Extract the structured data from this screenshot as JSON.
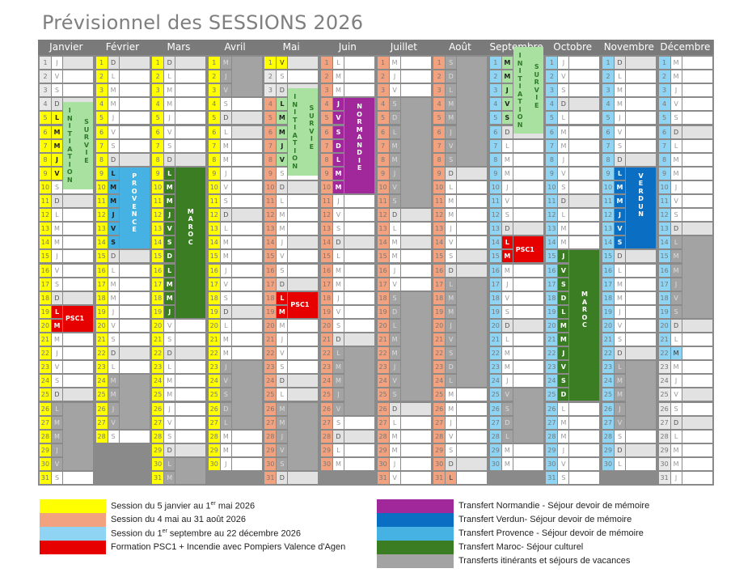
{
  "title": "Prévisionnel des SESSIONS 2026",
  "weekday_letters": [
    "L",
    "M",
    "M",
    "J",
    "V",
    "S",
    "D"
  ],
  "months": [
    {
      "name": "Janvier",
      "days": 31,
      "first_weekday": 3
    },
    {
      "name": "Février",
      "days": 28,
      "first_weekday": 6
    },
    {
      "name": "Mars",
      "days": 31,
      "first_weekday": 6
    },
    {
      "name": "Avril",
      "days": 30,
      "first_weekday": 2
    },
    {
      "name": "Mai",
      "days": 31,
      "first_weekday": 4
    },
    {
      "name": "Juin",
      "days": 30,
      "first_weekday": 0
    },
    {
      "name": "Juillet",
      "days": 31,
      "first_weekday": 2
    },
    {
      "name": "Août",
      "days": 31,
      "first_weekday": 5
    },
    {
      "name": "Septembre",
      "days": 30,
      "first_weekday": 1
    },
    {
      "name": "Octobre",
      "days": 31,
      "first_weekday": 3
    },
    {
      "name": "Novembre",
      "days": 30,
      "first_weekday": 6
    },
    {
      "name": "Décembre",
      "days": 31,
      "first_weekday": 1
    }
  ],
  "colors": {
    "session1": "#ffff00",
    "session2": "#f2a27e",
    "session3": "#8fd4f2",
    "psc1": "#e60000",
    "normandie": "#a0289a",
    "verdun": "#0a6fc2",
    "provence": "#45b2e3",
    "maroc": "#3a7d22",
    "vacances": "#a3a3a3",
    "initiation": "#a9e2a0",
    "initiation_text": "#2f7a2a",
    "no_session": "#e8e8e8",
    "sunday": "#e2e2e2",
    "header": "#7a7a7a"
  },
  "sessions": [
    {
      "color": "session1",
      "from": [
        1,
        5
      ],
      "to": [
        5,
        1
      ]
    },
    {
      "color": "session2",
      "from": [
        5,
        4
      ],
      "to": [
        8,
        31
      ]
    },
    {
      "color": "session3",
      "from": [
        9,
        1
      ],
      "to": [
        12,
        22
      ]
    }
  ],
  "holidays": [
    [
      1,
      1
    ],
    [
      4,
      6
    ],
    [
      5,
      1
    ],
    [
      5,
      8
    ],
    [
      5,
      14
    ],
    [
      5,
      25
    ],
    [
      7,
      14
    ],
    [
      8,
      15
    ],
    [
      11,
      1
    ],
    [
      11,
      11
    ],
    [
      12,
      25
    ]
  ],
  "vacations": [
    {
      "month": 1,
      "from": 26,
      "to": 30
    },
    {
      "month": 2,
      "from": 24,
      "to": 27
    },
    {
      "month": 3,
      "from": 30,
      "to": 31
    },
    {
      "month": 4,
      "from": 1,
      "to": 3
    },
    {
      "month": 4,
      "from": 23,
      "to": 27
    },
    {
      "month": 5,
      "from": 26,
      "to": 30
    },
    {
      "month": 6,
      "from": 22,
      "to": 26
    },
    {
      "month": 7,
      "from": 4,
      "to": 11
    },
    {
      "month": 7,
      "from": 18,
      "to": 25
    },
    {
      "month": 8,
      "from": 1,
      "to": 8
    },
    {
      "month": 8,
      "from": 17,
      "to": 24
    },
    {
      "month": 9,
      "from": 25,
      "to": 28
    },
    {
      "month": 11,
      "from": 23,
      "to": 27
    },
    {
      "month": 12,
      "from": 14,
      "to": 19
    }
  ],
  "events": [
    {
      "month": 1,
      "from": 5,
      "to": 9,
      "kind": "initiation",
      "labels": [
        "INITIATION",
        "SURVIE"
      ],
      "color": "initiation",
      "text": "initiation_text",
      "weekday_color": "session1"
    },
    {
      "month": 5,
      "from": 4,
      "to": 8,
      "kind": "initiation",
      "labels": [
        "INITIATION",
        "SURVIE"
      ],
      "color": "initiation",
      "text": "initiation_text",
      "weekday_color": "initiation"
    },
    {
      "month": 9,
      "from": 1,
      "to": 5,
      "kind": "initiation",
      "labels": [
        "INITIATION",
        "SURVIE"
      ],
      "color": "initiation",
      "text": "initiation_text",
      "weekday_color": "initiation"
    },
    {
      "month": 2,
      "from": 9,
      "to": 14,
      "kind": "transfer",
      "labels": [
        "PROVENCE"
      ],
      "color": "provence",
      "weekday_color": "provence"
    },
    {
      "month": 3,
      "from": 9,
      "to": 19,
      "kind": "transfer",
      "labels": [
        "MAROC"
      ],
      "color": "maroc",
      "weekday_color": "maroc"
    },
    {
      "month": 6,
      "from": 4,
      "to": 10,
      "kind": "transfer",
      "labels": [
        "NORMANDIE"
      ],
      "color": "normandie",
      "weekday_color": "normandie"
    },
    {
      "month": 10,
      "from": 15,
      "to": 25,
      "kind": "transfer",
      "labels": [
        "MAROC"
      ],
      "color": "maroc",
      "weekday_color": "maroc"
    },
    {
      "month": 11,
      "from": 9,
      "to": 14,
      "kind": "transfer",
      "labels": [
        "VERDUN"
      ],
      "color": "verdun",
      "weekday_color": "verdun"
    },
    {
      "month": 1,
      "from": 19,
      "to": 20,
      "kind": "psc",
      "labels": [
        "PSC1"
      ],
      "color": "psc1",
      "weekday_color": "psc1"
    },
    {
      "month": 5,
      "from": 18,
      "to": 19,
      "kind": "psc",
      "labels": [
        "PSC1"
      ],
      "color": "psc1",
      "weekday_color": "psc1"
    },
    {
      "month": 9,
      "from": 14,
      "to": 15,
      "kind": "psc",
      "labels": [
        "PSC1"
      ],
      "color": "psc1",
      "weekday_color": "psc1"
    }
  ],
  "legend": {
    "left": [
      {
        "color": "session1",
        "pre": "Session du 5 janvier au 1",
        "sup": "er",
        "post": " mai 2026"
      },
      {
        "color": "session2",
        "pre": "Session du 4 mai au 31 août 2026",
        "sup": "",
        "post": ""
      },
      {
        "color": "session3",
        "pre": "Session du 1",
        "sup": "er",
        "post": " septembre au 22 décembre 2026"
      },
      {
        "color": "psc1",
        "pre": "Formation PSC1 + Incendie avec Pompiers Valence d'Agen",
        "sup": "",
        "post": ""
      }
    ],
    "right": [
      {
        "color": "normandie",
        "text": "Transfert Normandie -  Séjour devoir de mémoire"
      },
      {
        "color": "verdun",
        "text": "Transfert Verdun-  Séjour devoir de mémoire"
      },
      {
        "color": "provence",
        "text": "Transfert Provence -  Séjour devoir de mémoire"
      },
      {
        "color": "maroc",
        "text": "Transfert Maroc-  Séjour culturel"
      },
      {
        "color": "vacances",
        "text": "Transferts itinérants et séjours de vacances"
      }
    ]
  }
}
